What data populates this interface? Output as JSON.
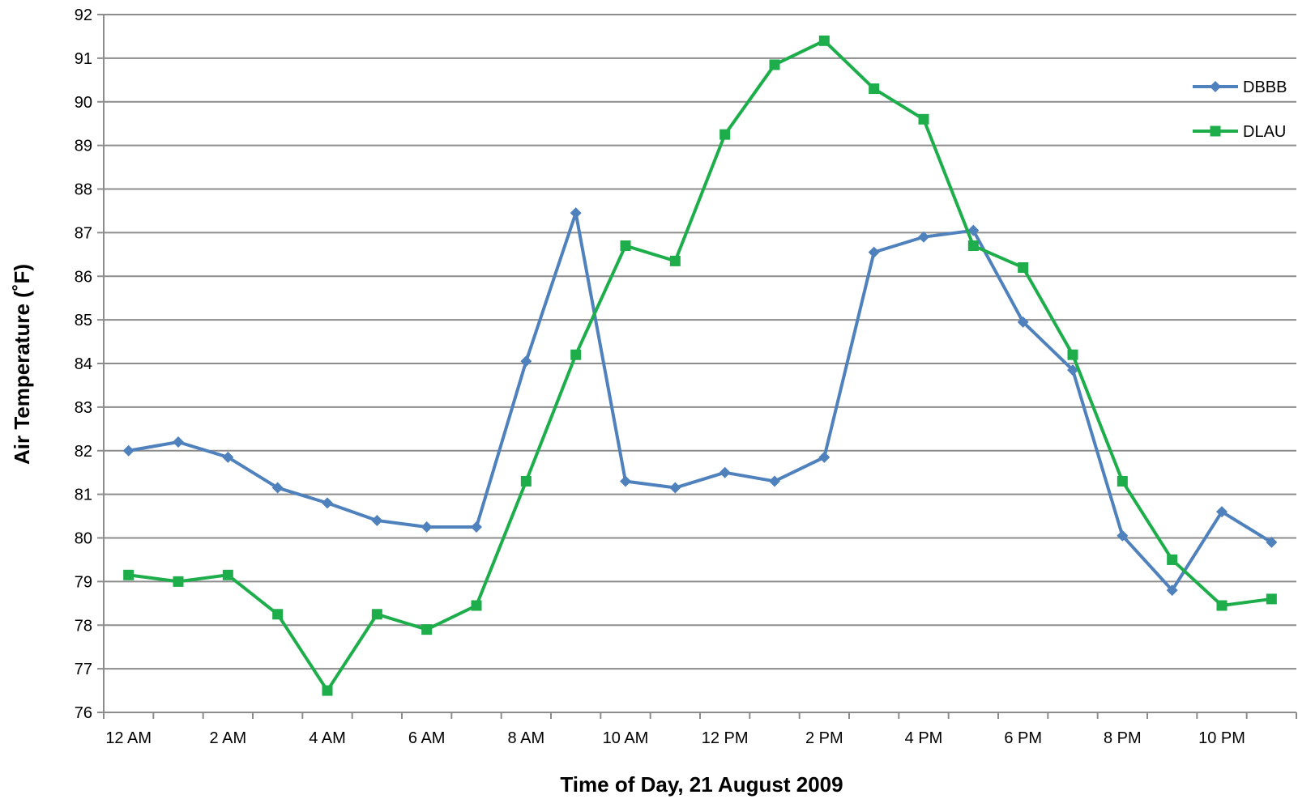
{
  "chart_data": {
    "type": "line",
    "xlabel": "Time of Day, 21 August 2009",
    "ylabel": "Air Temperature (˚F)",
    "ylim": [
      76,
      92
    ],
    "yticks": [
      76,
      77,
      78,
      79,
      80,
      81,
      82,
      83,
      84,
      85,
      86,
      87,
      88,
      89,
      90,
      91,
      92
    ],
    "x_tick_labels": [
      "12 AM",
      "2 AM",
      "4 AM",
      "6 AM",
      "8 AM",
      "10 AM",
      "12 PM",
      "2 PM",
      "4 PM",
      "6 PM",
      "8 PM",
      "10 PM"
    ],
    "categories": [
      "12 AM",
      "1 AM",
      "2 AM",
      "3 AM",
      "4 AM",
      "5 AM",
      "6 AM",
      "7 AM",
      "8 AM",
      "9 AM",
      "10 AM",
      "11 AM",
      "12 PM",
      "1 PM",
      "2 PM",
      "3 PM",
      "4 PM",
      "5 PM",
      "6 PM",
      "7 PM",
      "8 PM",
      "9 PM",
      "10 PM",
      "11 PM"
    ],
    "grid": true,
    "legend_position": "top-right",
    "series": [
      {
        "name": "DBBB",
        "color": "#4F81BD",
        "marker": "diamond",
        "values": [
          82.0,
          82.2,
          81.85,
          81.15,
          80.8,
          80.4,
          80.25,
          80.25,
          84.05,
          87.45,
          81.3,
          81.15,
          81.5,
          81.3,
          81.85,
          86.55,
          86.9,
          87.05,
          84.95,
          83.85,
          80.05,
          78.8,
          80.6,
          79.9
        ]
      },
      {
        "name": "DLAU",
        "color": "#1DAE4B",
        "marker": "square",
        "values": [
          79.15,
          79.0,
          79.15,
          78.25,
          76.5,
          78.25,
          77.9,
          78.45,
          81.3,
          84.2,
          86.7,
          86.35,
          89.25,
          90.85,
          91.4,
          90.3,
          89.6,
          86.7,
          86.2,
          84.2,
          81.3,
          79.5,
          78.45,
          78.6
        ]
      }
    ]
  }
}
